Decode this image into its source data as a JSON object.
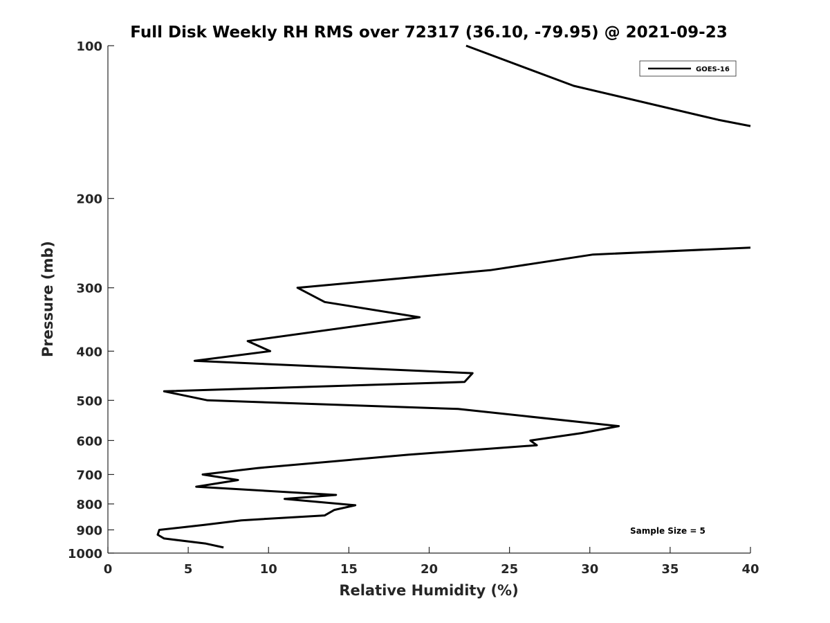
{
  "chart_data": {
    "type": "line",
    "title": "Full Disk Weekly RH RMS over 72317 (36.10, -79.95) @ 2021-09-23",
    "xlabel": "Relative Humidity (%)",
    "ylabel": "Pressure (mb)",
    "xlim": [
      0,
      40
    ],
    "ylim": [
      100,
      1000
    ],
    "y_scale": "log",
    "y_reversed": true,
    "x_ticks": [
      "0",
      "5",
      "10",
      "15",
      "20",
      "25",
      "30",
      "35",
      "40"
    ],
    "y_ticks": [
      "100",
      "200",
      "300",
      "400",
      "500",
      "600",
      "700",
      "800",
      "900",
      "1000"
    ],
    "grid": false,
    "legend_position": "top-right",
    "annotation": "Sample Size = 5",
    "series": [
      {
        "name": "GOES-16",
        "color": "#000000",
        "segments": [
          [
            {
              "x": 22.3,
              "y": 100
            },
            {
              "x": 29.0,
              "y": 120
            },
            {
              "x": 38.0,
              "y": 140
            },
            {
              "x": 40.0,
              "y": 144
            }
          ],
          [
            {
              "x": 40.0,
              "y": 250
            },
            {
              "x": 30.2,
              "y": 258
            },
            {
              "x": 23.8,
              "y": 277
            },
            {
              "x": 11.8,
              "y": 300
            },
            {
              "x": 13.5,
              "y": 320
            },
            {
              "x": 19.4,
              "y": 343
            },
            {
              "x": 8.7,
              "y": 382
            },
            {
              "x": 10.1,
              "y": 400
            },
            {
              "x": 5.4,
              "y": 418
            },
            {
              "x": 22.7,
              "y": 442
            },
            {
              "x": 22.2,
              "y": 460
            },
            {
              "x": 3.5,
              "y": 480
            },
            {
              "x": 6.2,
              "y": 500
            },
            {
              "x": 21.8,
              "y": 520
            },
            {
              "x": 31.8,
              "y": 562
            },
            {
              "x": 29.5,
              "y": 580
            },
            {
              "x": 26.3,
              "y": 600
            },
            {
              "x": 26.7,
              "y": 613
            },
            {
              "x": 18.7,
              "y": 640
            },
            {
              "x": 9.3,
              "y": 680
            },
            {
              "x": 5.9,
              "y": 700
            },
            {
              "x": 8.1,
              "y": 718
            },
            {
              "x": 5.5,
              "y": 740
            },
            {
              "x": 14.2,
              "y": 768
            },
            {
              "x": 11.0,
              "y": 782
            },
            {
              "x": 15.4,
              "y": 805
            },
            {
              "x": 14.1,
              "y": 822
            },
            {
              "x": 13.5,
              "y": 843
            },
            {
              "x": 8.3,
              "y": 862
            },
            {
              "x": 6.0,
              "y": 880
            },
            {
              "x": 3.2,
              "y": 900
            },
            {
              "x": 3.1,
              "y": 920
            },
            {
              "x": 3.5,
              "y": 936
            },
            {
              "x": 6.1,
              "y": 958
            },
            {
              "x": 7.2,
              "y": 975
            }
          ]
        ]
      }
    ]
  }
}
